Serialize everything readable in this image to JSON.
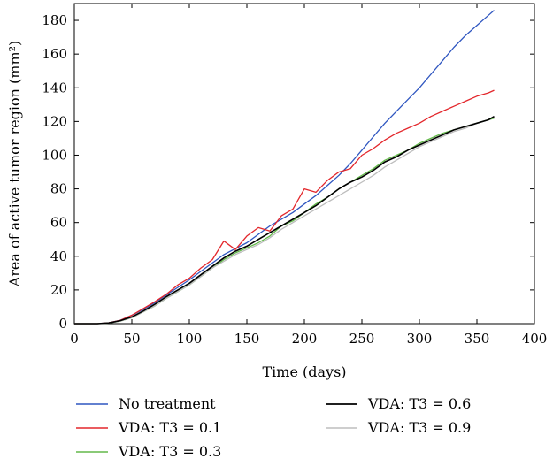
{
  "chart_data": {
    "type": "line",
    "title": "",
    "xlabel": "Time (days)",
    "ylabel": "Area of active tumor region (mm²)",
    "xlim": [
      0,
      400
    ],
    "ylim": [
      0,
      190
    ],
    "xticks": [
      0,
      50,
      100,
      150,
      200,
      250,
      300,
      350,
      400
    ],
    "yticks": [
      0,
      20,
      40,
      60,
      80,
      100,
      120,
      140,
      160,
      180
    ],
    "grid": false,
    "legend_position": "below plot, two columns",
    "x": [
      0,
      20,
      30,
      40,
      50,
      60,
      70,
      80,
      90,
      100,
      110,
      120,
      130,
      140,
      150,
      160,
      170,
      180,
      190,
      200,
      210,
      220,
      230,
      240,
      250,
      260,
      270,
      280,
      290,
      300,
      310,
      320,
      330,
      340,
      350,
      360,
      365
    ],
    "series": [
      {
        "name": "No treatment",
        "color": "#2f56c0",
        "values": [
          0,
          0,
          0.5,
          2,
          5,
          8.5,
          12.5,
          17,
          21.5,
          26,
          31,
          36,
          41,
          44.5,
          48,
          53,
          58,
          62,
          66,
          71,
          76,
          82,
          88,
          95,
          103,
          111,
          119,
          126,
          133,
          140,
          148,
          156,
          164,
          171,
          177,
          183,
          186
        ]
      },
      {
        "name": "VDA: T3 = 0.1",
        "color": "#e3262b",
        "values": [
          0,
          0,
          0.5,
          2,
          5,
          9,
          13,
          17.5,
          23,
          27,
          33,
          38,
          49,
          44,
          52,
          57,
          55,
          64,
          68,
          80,
          78,
          85,
          90,
          92,
          100,
          104,
          109,
          113,
          116,
          119,
          123,
          126,
          129,
          132,
          135,
          137,
          138.5
        ]
      },
      {
        "name": "VDA: T3 = 0.3",
        "color": "#63b94a",
        "values": [
          0,
          0,
          0.3,
          1.5,
          3.5,
          7,
          10.5,
          15,
          19,
          23,
          28,
          33,
          38,
          42,
          45,
          48,
          52,
          58,
          61,
          66,
          71,
          75,
          80,
          84,
          88,
          92,
          97,
          100,
          103,
          107,
          110,
          113,
          115,
          117,
          119,
          121,
          122
        ]
      },
      {
        "name": "VDA: T3 = 0.6",
        "color": "#000000",
        "values": [
          0,
          0,
          0.4,
          1.8,
          4,
          7.5,
          11.5,
          16,
          20,
          24,
          29,
          34,
          39,
          43,
          46,
          50,
          54,
          58,
          62,
          66,
          70,
          75,
          80,
          84,
          87,
          91,
          96,
          99,
          103,
          106,
          109,
          112,
          115,
          117,
          119,
          121,
          123
        ]
      },
      {
        "name": "VDA: T3 = 0.9",
        "color": "#bdbdbd",
        "values": [
          0,
          0,
          0.3,
          1.5,
          3.5,
          7,
          10.5,
          15,
          19,
          23,
          28,
          33,
          37,
          41,
          44,
          47,
          51,
          56,
          60,
          64,
          68,
          72,
          76,
          80,
          84,
          88,
          93,
          97,
          101,
          105,
          108,
          111,
          114,
          116,
          119,
          121,
          123
        ]
      }
    ]
  }
}
